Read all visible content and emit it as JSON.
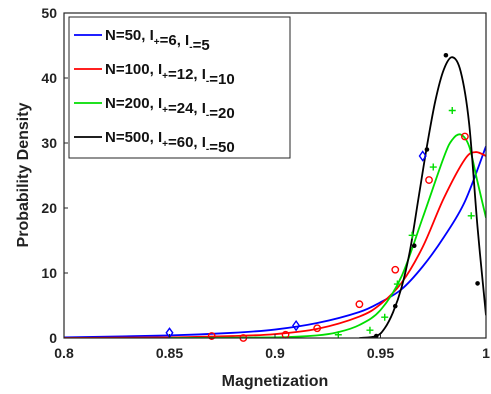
{
  "chart_data": {
    "type": "line",
    "xlabel": "Magnetization",
    "ylabel": "Probability Density",
    "xlim": [
      0.8,
      1.0
    ],
    "ylim": [
      0,
      50
    ],
    "xticks": [
      0.8,
      0.85,
      0.9,
      0.95,
      1.0
    ],
    "xtick_labels": [
      "0.8",
      "0.85",
      "0.9",
      "0.95",
      "1"
    ],
    "yticks": [
      0,
      10,
      20,
      30,
      40,
      50
    ],
    "ytick_labels": [
      "0",
      "10",
      "20",
      "30",
      "40",
      "50"
    ],
    "grid": false,
    "legend_position": "top-left",
    "series": [
      {
        "name": "N=50, I+=6, I-=5",
        "legend": {
          "prefix": "N=50, I",
          "sub1": "+",
          "mid": "=6, I",
          "sub2": "-",
          "suffix": "=5"
        },
        "color": "#0000ff",
        "marker": "diamond",
        "markers": [
          [
            0.85,
            0.8
          ],
          [
            0.91,
            1.9
          ],
          [
            0.97,
            28.0
          ]
        ],
        "curve": [
          [
            0.8,
            0.1
          ],
          [
            0.85,
            0.4
          ],
          [
            0.88,
            0.8
          ],
          [
            0.9,
            1.3
          ],
          [
            0.92,
            2.3
          ],
          [
            0.94,
            4.0
          ],
          [
            0.95,
            5.5
          ],
          [
            0.96,
            7.5
          ],
          [
            0.97,
            11.0
          ],
          [
            0.98,
            15.5
          ],
          [
            0.99,
            21.0
          ],
          [
            1.0,
            29.5
          ]
        ]
      },
      {
        "name": "N=100, I+=12, I-=10",
        "legend": {
          "prefix": "N=100, I",
          "sub1": "+",
          "mid": "=12, I",
          "sub2": "-",
          "suffix": "=10"
        },
        "color": "#ff0000",
        "marker": "circle",
        "markers": [
          [
            0.87,
            0.3
          ],
          [
            0.885,
            0.0
          ],
          [
            0.905,
            0.5
          ],
          [
            0.92,
            1.5
          ],
          [
            0.94,
            5.2
          ],
          [
            0.957,
            10.5
          ],
          [
            0.973,
            24.3
          ],
          [
            0.99,
            31.0
          ]
        ],
        "curve": [
          [
            0.8,
            0.0
          ],
          [
            0.85,
            0.1
          ],
          [
            0.88,
            0.3
          ],
          [
            0.9,
            0.6
          ],
          [
            0.92,
            1.4
          ],
          [
            0.94,
            3.3
          ],
          [
            0.95,
            5.2
          ],
          [
            0.96,
            8.5
          ],
          [
            0.97,
            14.0
          ],
          [
            0.98,
            21.5
          ],
          [
            0.99,
            27.5
          ],
          [
            0.995,
            28.6
          ],
          [
            1.0,
            28.0
          ]
        ]
      },
      {
        "name": "N=200, I+=24, I-=20",
        "legend": {
          "prefix": "N=200, I",
          "sub1": "+",
          "mid": "=24, I",
          "sub2": "-",
          "suffix": "=20"
        },
        "color": "#00dd00",
        "marker": "plus",
        "markers": [
          [
            0.93,
            0.5
          ],
          [
            0.945,
            1.2
          ],
          [
            0.952,
            3.2
          ],
          [
            0.958,
            8.3
          ],
          [
            0.965,
            15.8
          ],
          [
            0.975,
            26.3
          ],
          [
            0.984,
            35.0
          ],
          [
            0.993,
            18.8
          ]
        ],
        "curve": [
          [
            0.85,
            0.0
          ],
          [
            0.9,
            0.1
          ],
          [
            0.92,
            0.4
          ],
          [
            0.93,
            0.9
          ],
          [
            0.94,
            2.0
          ],
          [
            0.95,
            4.3
          ],
          [
            0.96,
            9.5
          ],
          [
            0.97,
            18.5
          ],
          [
            0.98,
            27.8
          ],
          [
            0.984,
            30.5
          ],
          [
            0.988,
            31.3
          ],
          [
            0.992,
            29.5
          ],
          [
            0.996,
            24.0
          ],
          [
            1.0,
            18.5
          ]
        ]
      },
      {
        "name": "N=500, I+=60, I-=50",
        "legend": {
          "prefix": "N=500, I",
          "sub1": "+",
          "mid": "=60, I",
          "sub2": "-",
          "suffix": "=50"
        },
        "color": "#000000",
        "marker": "dot",
        "markers": [
          [
            0.948,
            0.3
          ],
          [
            0.957,
            4.9
          ],
          [
            0.966,
            14.2
          ],
          [
            0.972,
            29.0
          ],
          [
            0.981,
            43.5
          ],
          [
            0.996,
            8.4
          ]
        ],
        "curve": [
          [
            0.94,
            0.0
          ],
          [
            0.948,
            0.3
          ],
          [
            0.952,
            1.5
          ],
          [
            0.956,
            4.0
          ],
          [
            0.96,
            7.8
          ],
          [
            0.964,
            13.5
          ],
          [
            0.968,
            21.5
          ],
          [
            0.972,
            29.5
          ],
          [
            0.976,
            36.5
          ],
          [
            0.98,
            41.3
          ],
          [
            0.984,
            43.2
          ],
          [
            0.988,
            41.0
          ],
          [
            0.992,
            33.0
          ],
          [
            0.996,
            17.0
          ],
          [
            1.0,
            3.5
          ]
        ]
      }
    ]
  }
}
